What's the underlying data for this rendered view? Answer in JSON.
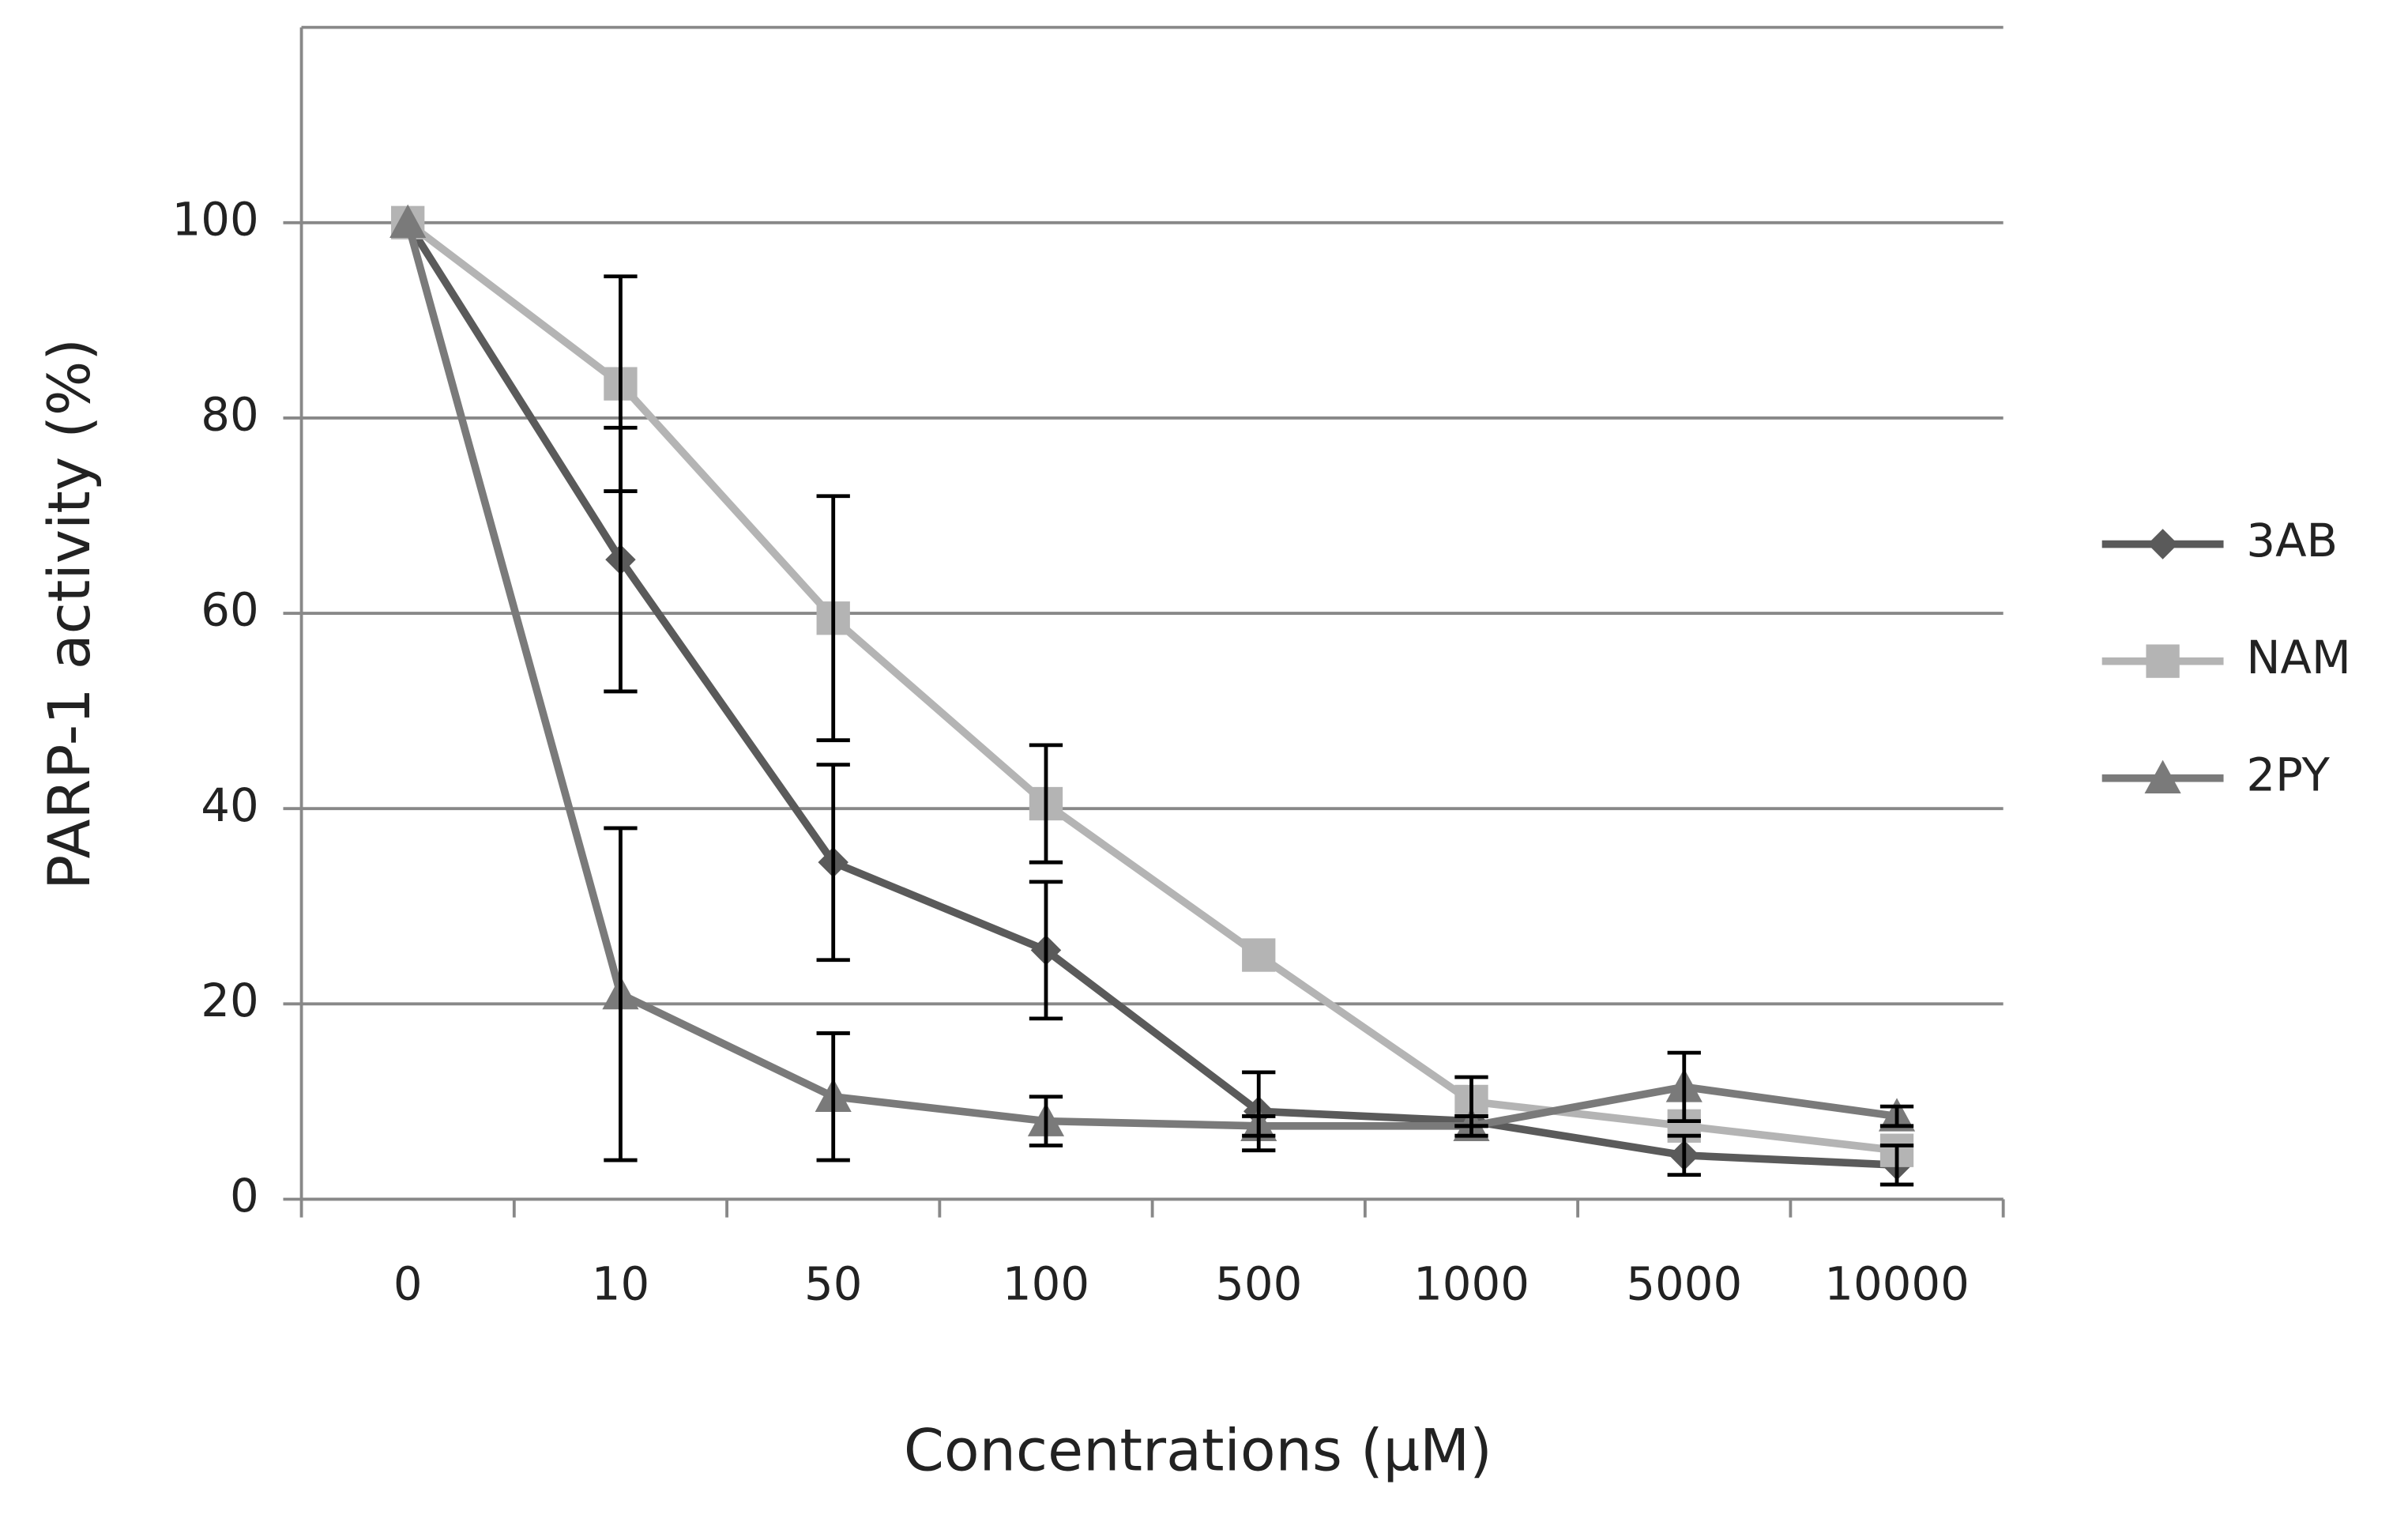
{
  "chart_data": {
    "type": "line",
    "x_label": "Concentrations (µM)",
    "y_label": "PARP-1 activity (%)",
    "categories": [
      "0",
      "10",
      "50",
      "100",
      "500",
      "1000",
      "5000",
      "10000"
    ],
    "ylim": [
      0,
      120
    ],
    "yticks": [
      0,
      20,
      40,
      60,
      80,
      100
    ],
    "grid": true,
    "series": [
      {
        "name": "3AB",
        "color": "#5a5a5a",
        "marker": "diamond",
        "values": [
          100,
          65.5,
          34.5,
          25.5,
          9,
          8,
          4.5,
          3.5
        ],
        "errors": [
          0,
          13.5,
          10,
          7,
          4,
          0.5,
          2,
          2
        ]
      },
      {
        "name": "NAM",
        "color": "#b4b4b4",
        "marker": "square",
        "values": [
          100,
          83.5,
          59.5,
          40.5,
          25,
          10,
          7.5,
          5
        ],
        "errors": [
          0,
          11,
          12.5,
          6,
          0,
          2.5,
          0,
          0
        ]
      },
      {
        "name": "2PY",
        "color": "#7a7a7a",
        "marker": "triangle",
        "values": [
          100,
          21,
          10.5,
          8,
          7.5,
          7.5,
          11.5,
          8.5
        ],
        "errors": [
          0,
          17,
          6.5,
          2.5,
          1,
          1,
          3.5,
          1
        ]
      }
    ]
  }
}
